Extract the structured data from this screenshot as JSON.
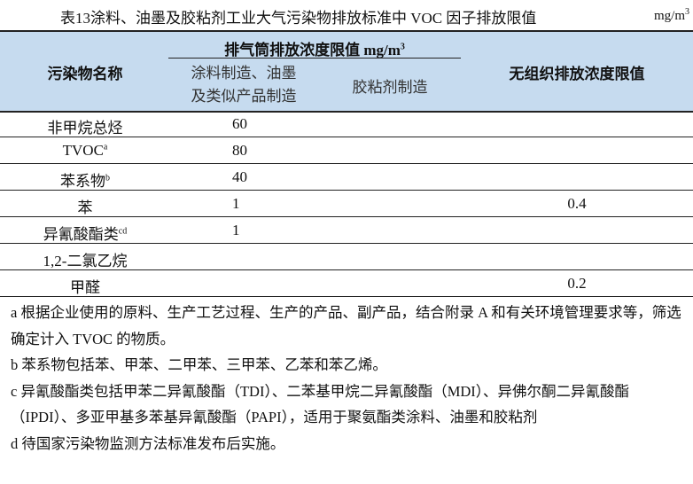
{
  "title": "表13涂料、油墨及胶粘剂工业大气污染物排放标准中 VOC 因子排放限值",
  "unit": {
    "base": "mg/m",
    "exp": "3"
  },
  "header": {
    "name_col": "污染物名称",
    "stack_group": "排气筒排放浓度限值 mg/m",
    "stack_group_exp": "3",
    "sub_col1_line1": "涂料制造、油墨",
    "sub_col1_line2": "及类似产品制造",
    "sub_col2": "胶粘剂制造",
    "fugitive_col": "无组织排放浓度限值"
  },
  "rows": [
    {
      "name": "非甲烷总烃",
      "sup": "",
      "v1": "60",
      "v2": "",
      "v3": ""
    },
    {
      "name": "TVOC",
      "sup": "a",
      "v1": "80",
      "v2": "",
      "v3": ""
    },
    {
      "name": "苯系物",
      "sup": "b",
      "v1": "40",
      "v2": "",
      "v3": ""
    },
    {
      "name": "苯",
      "sup": "",
      "v1": "1",
      "v2": "",
      "v3": "0.4"
    },
    {
      "name": "异氰酸酯类",
      "sup": "cd",
      "v1": "1",
      "v2": "",
      "v3": ""
    },
    {
      "name": "1,2-二氯乙烷",
      "sup": "",
      "v1": "",
      "v2": "",
      "v3": ""
    },
    {
      "name": "甲醛",
      "sup": "",
      "v1": "",
      "v2": "",
      "v3": "0.2"
    }
  ],
  "notes": [
    "a 根据企业使用的原料、生产工艺过程、生产的产品、副产品，结合附录 A 和有关环境管理要求等，筛选确定计入 TVOC 的物质。",
    "b 苯系物包括苯、甲苯、二甲苯、三甲苯、乙苯和苯乙烯。",
    "c 异氰酸酯类包括甲苯二异氰酸酯（TDI）、二苯基甲烷二异氰酸酯（MDI）、异佛尔酮二异氰酸酯（IPDI）、多亚甲基多苯基异氰酸酯（PAPI），适用于聚氨酯类涂料、油墨和胶粘剂",
    "d 待国家污染物监测方法标准发布后实施。"
  ],
  "colors": {
    "header_bg": "#c6dbef"
  }
}
